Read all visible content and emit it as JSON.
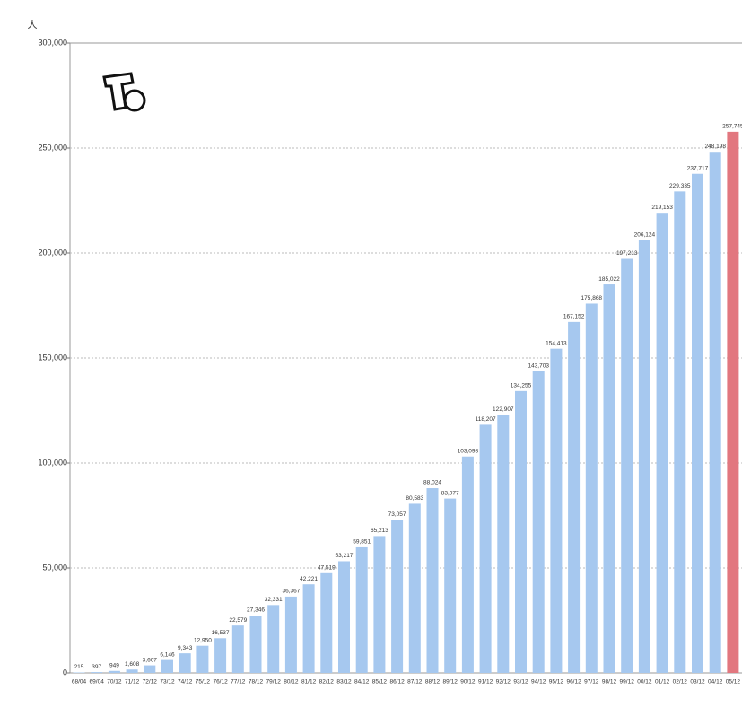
{
  "chart_data": {
    "type": "bar",
    "unit": "人",
    "categories": [
      "68/04",
      "69/04",
      "70/12",
      "71/12",
      "72/12",
      "73/12",
      "74/12",
      "75/12",
      "76/12",
      "77/12",
      "78/12",
      "79/12",
      "80/12",
      "81/12",
      "82/12",
      "83/12",
      "84/12",
      "85/12",
      "86/12",
      "87/12",
      "88/12",
      "89/12",
      "90/12",
      "91/12",
      "92/12",
      "93/12",
      "94/12",
      "95/12",
      "96/12",
      "97/12",
      "98/12",
      "99/12",
      "00/12",
      "01/12",
      "02/12",
      "03/12",
      "04/12",
      "05/12"
    ],
    "values": [
      215,
      397,
      949,
      1608,
      3607,
      6146,
      9343,
      12950,
      16537,
      22579,
      27346,
      32331,
      36367,
      42221,
      47519,
      53217,
      59851,
      65213,
      73057,
      80583,
      88024,
      83077,
      103098,
      118207,
      122907,
      134255,
      143703,
      154413,
      167152,
      175868,
      185022,
      197213,
      206124,
      219153,
      229335,
      237717,
      248198,
      257745
    ],
    "value_labels": [
      "215",
      "397",
      "949",
      "1,608",
      "3,607",
      "6,146",
      "9,343",
      "12,950",
      "16,537",
      "22,579",
      "27,346",
      "32,331",
      "36,367",
      "42,221",
      "47,519",
      "53,217",
      "59,851",
      "65,213",
      "73,057",
      "80,583",
      "88,024",
      "83,077",
      "103,098",
      "118,207",
      "122,907",
      "134,255",
      "143,703",
      "154,413",
      "167,152",
      "175,868",
      "185,022",
      "197,213",
      "206,124",
      "219,153",
      "229,335",
      "237,717",
      "248,198",
      "257,745"
    ],
    "colors": [
      "#a6c8ef",
      "#a6c8ef",
      "#a6c8ef",
      "#a6c8ef",
      "#a6c8ef",
      "#a6c8ef",
      "#a6c8ef",
      "#a6c8ef",
      "#a6c8ef",
      "#a6c8ef",
      "#a6c8ef",
      "#a6c8ef",
      "#a6c8ef",
      "#a6c8ef",
      "#a6c8ef",
      "#a6c8ef",
      "#a6c8ef",
      "#a6c8ef",
      "#a6c8ef",
      "#a6c8ef",
      "#a6c8ef",
      "#a6c8ef",
      "#a6c8ef",
      "#a6c8ef",
      "#a6c8ef",
      "#a6c8ef",
      "#a6c8ef",
      "#a6c8ef",
      "#a6c8ef",
      "#a6c8ef",
      "#a6c8ef",
      "#a6c8ef",
      "#a6c8ef",
      "#a6c8ef",
      "#a6c8ef",
      "#a6c8ef",
      "#a6c8ef",
      "#e2777f"
    ],
    "ylim": [
      0,
      300000
    ],
    "yticks": [
      0,
      {
        "value": 50000,
        "label": "50,000"
      },
      {
        "value": 100000,
        "label": "100,000"
      },
      {
        "value": 150000,
        "label": "150,000"
      },
      {
        "value": 200000,
        "label": "200,000"
      },
      {
        "value": 250000,
        "label": "250,000"
      },
      {
        "value": 300000,
        "label": "300,000"
      }
    ],
    "grid": true
  }
}
